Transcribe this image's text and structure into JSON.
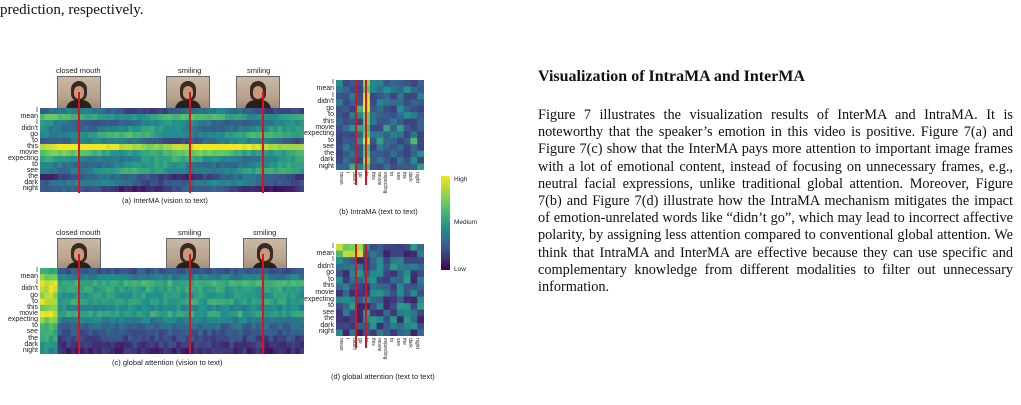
{
  "top_text": "prediction, respectively.",
  "figure": {
    "panel_a": {
      "caption": "(a)  InterMA (vision to text)",
      "frame_labels": [
        "closed mouth",
        "smiling",
        "smiling"
      ],
      "row_labels": [
        "I",
        "mean",
        "I",
        "didn't",
        "go",
        "to",
        "this",
        "movie",
        "expecting",
        "to",
        "see",
        "the",
        "dark",
        "night"
      ]
    },
    "panel_b": {
      "caption": "(b)  IntraMA (text to text)",
      "row_labels": [
        "I",
        "mean",
        "I",
        "didn't",
        "go",
        "to",
        "this",
        "movie",
        "expecting",
        "to",
        "see",
        "the",
        "dark",
        "night"
      ],
      "col_labels": [
        "mean",
        "I",
        "didn't",
        "go",
        "to",
        "this",
        "movie",
        "expecting",
        "to",
        "see",
        "the",
        "dark",
        "night"
      ]
    },
    "panel_c": {
      "caption": "(c)  global attention (vision to text)",
      "frame_labels": [
        "closed mouth",
        "smiling",
        "smiling"
      ],
      "row_labels": [
        "I",
        "mean",
        "I",
        "didn't",
        "go",
        "to",
        "this",
        "movie",
        "expecting",
        "to",
        "see",
        "the",
        "dark",
        "night"
      ]
    },
    "panel_d": {
      "caption": "(d)  global attention (text to text)",
      "row_labels": [
        "I",
        "mean",
        "I",
        "didn't",
        "go",
        "to",
        "this",
        "movie",
        "expecting",
        "to",
        "see",
        "the",
        "dark",
        "night"
      ],
      "col_labels": [
        "mean",
        "I",
        "didn't",
        "go",
        "to",
        "this",
        "movie",
        "expecting",
        "to",
        "see",
        "the",
        "dark",
        "night"
      ]
    },
    "colorbar": {
      "high": "High",
      "medium": "Medium",
      "low": "Low"
    }
  },
  "section": {
    "title": "Visualization of IntraMA and InterMA",
    "paragraph": "Figure 7 illustrates the visualization results of InterMA and IntraMA. It is noteworthy that the speaker’s emotion in this video is positive. Figure 7(a) and Figure 7(c) show that the InterMA pays more attention to important image frames with a lot of emotional content, instead of focusing on unnecessary frames, e.g., neutral facial expressions, unlike traditional global attention. Moreover, Figure 7(b) and Figure 7(d) illustrate how the IntraMA mechanism mitigates the impact of emotion-unrelated words like “didn’t go”, which may lead to incorrect affective polarity, by assigning less attention compared to conventional global attention. We think that IntraMA and InterMA are effective because they can use specific and complementary knowledge from different modalities to filter out unnecessary information."
  }
}
